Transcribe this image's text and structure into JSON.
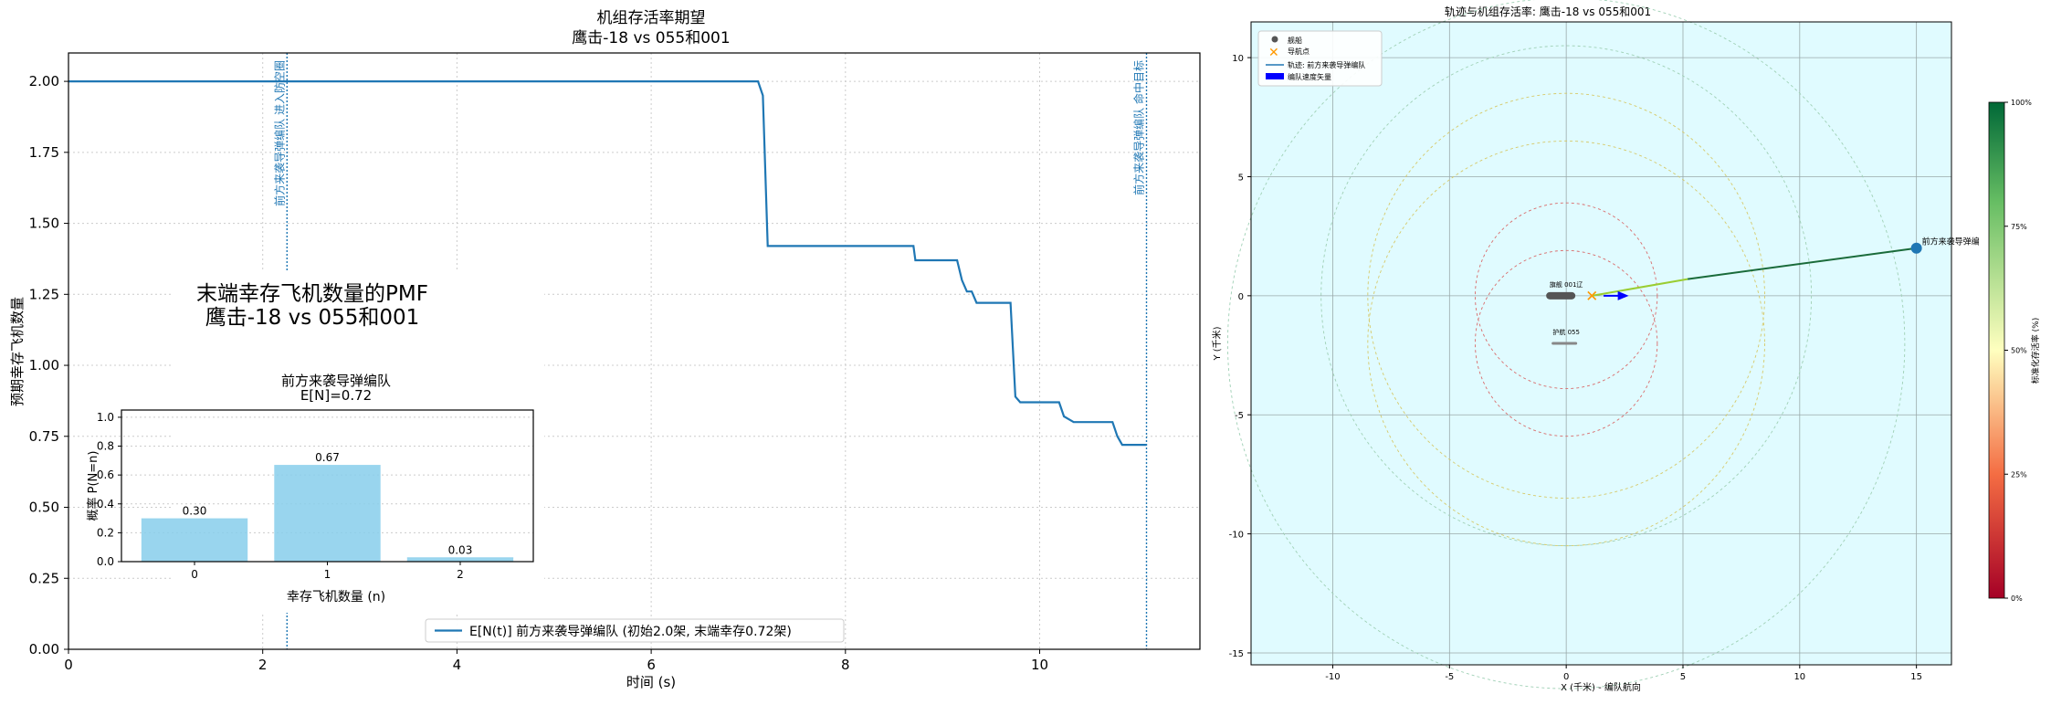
{
  "chart_data": [
    {
      "type": "line",
      "title": "机组存活率期望",
      "subtitle": "鹰击-18 vs 055和001",
      "xlabel": "时间 (s)",
      "ylabel": "预期幸存飞机数量",
      "xlim": [
        0,
        11.65
      ],
      "ylim": [
        0,
        2.1
      ],
      "x_ticks": [
        "0",
        "2",
        "4",
        "6",
        "8",
        "10"
      ],
      "y_ticks": [
        "0.00",
        "0.25",
        "0.50",
        "0.75",
        "1.00",
        "1.25",
        "1.50",
        "1.75",
        "2.00"
      ],
      "grid": true,
      "legend_position": "bottom-center",
      "series": [
        {
          "name": "E[N(t)] 前方来袭导弹编队 (初始2.0架, 末端幸存0.72架)",
          "color": "#1f77b4",
          "x": [
            0,
            7.1,
            7.15,
            7.2,
            7.25,
            8.7,
            8.72,
            9.15,
            9.2,
            9.25,
            9.3,
            9.35,
            9.4,
            9.7,
            9.75,
            9.8,
            9.85,
            10.2,
            10.25,
            10.3,
            10.35,
            10.75,
            10.8,
            10.85,
            10.9,
            11.1
          ],
          "y": [
            2.0,
            2.0,
            1.95,
            1.42,
            1.42,
            1.42,
            1.37,
            1.37,
            1.3,
            1.26,
            1.26,
            1.22,
            1.22,
            1.22,
            0.89,
            0.87,
            0.87,
            0.87,
            0.82,
            0.81,
            0.8,
            0.8,
            0.75,
            0.72,
            0.72,
            0.72
          ]
        }
      ],
      "annotations": [
        {
          "x": 2.25,
          "text": "前方来袭导弹编队 进入防空圈",
          "color": "#1f77b4"
        },
        {
          "x": 11.1,
          "text": "前方来袭导弹编队 命中目标",
          "color": "#1f77b4"
        }
      ]
    },
    {
      "type": "bar",
      "title": "末端幸存飞机数量的PMF",
      "subtitle": "鹰击-18 vs 055和001",
      "panel_title": "前方来袭导弹编队",
      "panel_subtitle": "E[N]=0.72",
      "xlabel": "幸存飞机数量 (n)",
      "ylabel": "概率 P(N=n)",
      "categories": [
        "0",
        "1",
        "2"
      ],
      "values": [
        0.3,
        0.67,
        0.03
      ],
      "value_labels": [
        "0.30",
        "0.67",
        "0.03"
      ],
      "ylim": [
        0,
        1.05
      ],
      "y_ticks": [
        "0.0",
        "0.2",
        "0.4",
        "0.6",
        "0.8",
        "1.0"
      ],
      "grid": true,
      "bar_color": "#87ceeb"
    },
    {
      "type": "scatter",
      "title": "轨迹与机组存活率: 鹰击-18 vs 055和001",
      "xlabel": "X (千米) - 编队航向",
      "ylabel": "Y (千米)",
      "xlim": [
        -13.5,
        16.5
      ],
      "ylim": [
        -15.5,
        11.5
      ],
      "x_ticks": [
        "-10",
        "-5",
        "0",
        "5",
        "10",
        "15"
      ],
      "y_ticks": [
        "10",
        "5",
        "0",
        "-5",
        "-10",
        "-15"
      ],
      "grid": true,
      "background": "#e0fbff",
      "legend_position": "top-left",
      "legend": [
        "舰船",
        "导航点",
        "轨迹: 前方来袭导弹编队",
        "编队速度矢量"
      ],
      "ships": [
        {
          "label": "旗舰 001辽",
          "x": 0.0,
          "y": 0.0
        },
        {
          "label": "护航 055",
          "x": 0.0,
          "y": -2.0
        }
      ],
      "rings": [
        {
          "cx": 0,
          "cy": 0,
          "r": 8.5,
          "color": "#d6c96a"
        },
        {
          "cx": 0,
          "cy": -2,
          "r": 8.5,
          "color": "#d6c96a"
        },
        {
          "cx": 0,
          "cy": 0,
          "r": 3.9,
          "color": "#d96b6b"
        },
        {
          "cx": 0,
          "cy": -2,
          "r": 3.9,
          "color": "#d96b6b"
        },
        {
          "cx": 0,
          "cy": 0,
          "r": 10.5,
          "color": "#9fd0b5"
        },
        {
          "cx": 0,
          "cy": -2,
          "r": 14.5,
          "color": "#9fd0b5"
        }
      ],
      "waypoint": {
        "x": 1.1,
        "y": 0.0
      },
      "velocity": {
        "x0": 1.6,
        "y0": 0.0,
        "dx": 1.0,
        "dy": 0.0
      },
      "track": {
        "label": "前方来袭导弹编",
        "points": [
          [
            15.0,
            2.0
          ],
          [
            5.2,
            0.7
          ],
          [
            1.1,
            0.0
          ]
        ],
        "colors": [
          "#1a6b3a",
          "#9acd32"
        ]
      },
      "colorbar": {
        "label": "标准化存活率 (%)",
        "ticks": [
          "100%",
          "75%",
          "50%",
          "25%",
          "0%"
        ],
        "colors": [
          "#006837",
          "#66bd63",
          "#ffffbf",
          "#f46d43",
          "#a50026"
        ]
      }
    }
  ]
}
